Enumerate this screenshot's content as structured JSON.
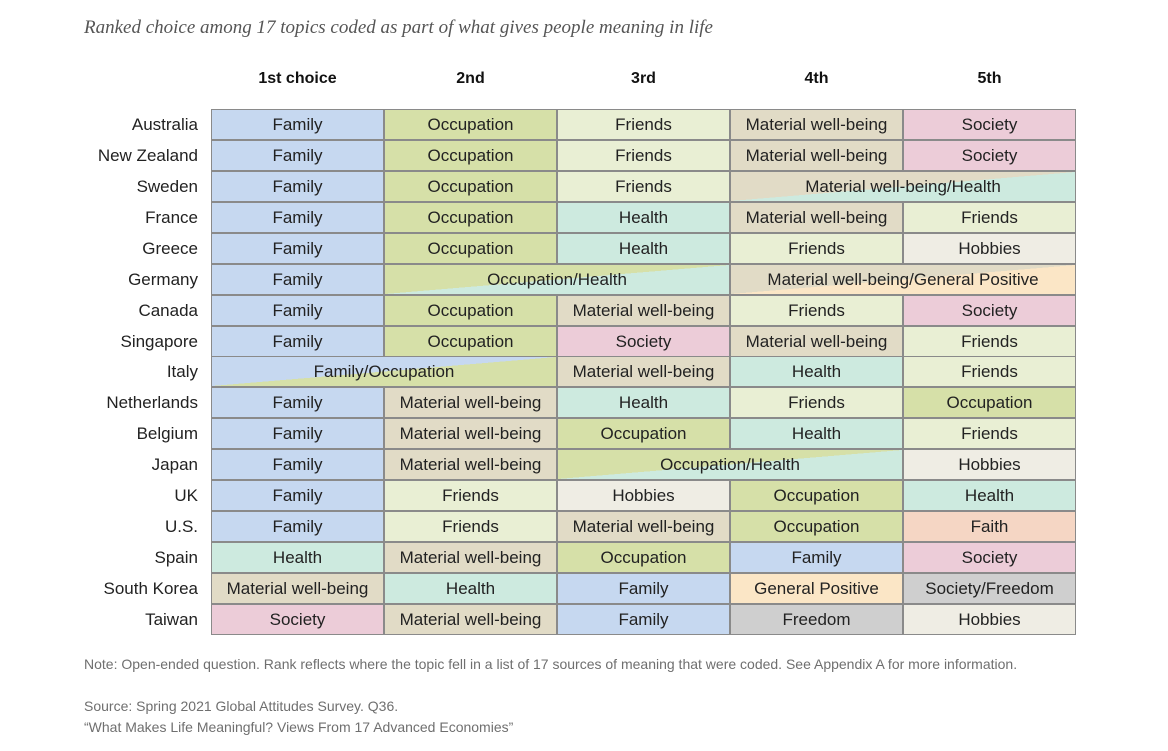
{
  "subtitle": "Ranked choice among 17 topics coded as part of what gives people meaning in life",
  "colors": {
    "Family": "#c6d8f0",
    "Occupation": "#d6e0a8",
    "Friends": "#e9efd4",
    "Material well-being": "#e1dbc6",
    "Society": "#ecccd8",
    "Health": "#cdeadf",
    "Hobbies": "#efede4",
    "Faith": "#f5d6c4",
    "General Positive": "#fbe6c6",
    "Freedom": "#cfcfcf",
    "Society/Freedom": "#cfcfcf"
  },
  "chart_data": {
    "type": "table",
    "columns": [
      "1st choice",
      "2nd",
      "3rd",
      "4th",
      "5th"
    ],
    "rows": [
      {
        "country": "Australia",
        "cells": [
          {
            "text": "Family",
            "span": 1
          },
          {
            "text": "Occupation",
            "span": 1
          },
          {
            "text": "Friends",
            "span": 1
          },
          {
            "text": "Material well-being",
            "span": 1
          },
          {
            "text": "Society",
            "span": 1
          }
        ]
      },
      {
        "country": "New Zealand",
        "cells": [
          {
            "text": "Family",
            "span": 1
          },
          {
            "text": "Occupation",
            "span": 1
          },
          {
            "text": "Friends",
            "span": 1
          },
          {
            "text": "Material well-being",
            "span": 1
          },
          {
            "text": "Society",
            "span": 1
          }
        ]
      },
      {
        "country": "Sweden",
        "cells": [
          {
            "text": "Family",
            "span": 1
          },
          {
            "text": "Occupation",
            "span": 1
          },
          {
            "text": "Friends",
            "span": 1
          },
          {
            "text": "Material well-being/Health",
            "span": 2,
            "tie": [
              "Material well-being",
              "Health"
            ]
          }
        ]
      },
      {
        "country": "France",
        "cells": [
          {
            "text": "Family",
            "span": 1
          },
          {
            "text": "Occupation",
            "span": 1
          },
          {
            "text": "Health",
            "span": 1
          },
          {
            "text": "Material well-being",
            "span": 1
          },
          {
            "text": "Friends",
            "span": 1
          }
        ]
      },
      {
        "country": "Greece",
        "cells": [
          {
            "text": "Family",
            "span": 1
          },
          {
            "text": "Occupation",
            "span": 1
          },
          {
            "text": "Health",
            "span": 1
          },
          {
            "text": "Friends",
            "span": 1
          },
          {
            "text": "Hobbies",
            "span": 1
          }
        ]
      },
      {
        "country": "Germany",
        "cells": [
          {
            "text": "Family",
            "span": 1
          },
          {
            "text": "Occupation/Health",
            "span": 2,
            "tie": [
              "Occupation",
              "Health"
            ]
          },
          {
            "text": "Material well-being/General Positive",
            "span": 2,
            "tie": [
              "Material well-being",
              "General Positive"
            ]
          }
        ]
      },
      {
        "country": "Canada",
        "cells": [
          {
            "text": "Family",
            "span": 1
          },
          {
            "text": "Occupation",
            "span": 1
          },
          {
            "text": "Material well-being",
            "span": 1
          },
          {
            "text": "Friends",
            "span": 1
          },
          {
            "text": "Society",
            "span": 1
          }
        ]
      },
      {
        "country": "Singapore",
        "cells": [
          {
            "text": "Family",
            "span": 1
          },
          {
            "text": "Occupation",
            "span": 1
          },
          {
            "text": "Society",
            "span": 1
          },
          {
            "text": "Material well-being",
            "span": 1
          },
          {
            "text": "Friends",
            "span": 1
          }
        ]
      },
      {
        "country": "Italy",
        "cells": [
          {
            "text": "Family/Occupation",
            "span": 2,
            "tie": [
              "Family",
              "Occupation"
            ]
          },
          {
            "text": "Material well-being",
            "span": 1
          },
          {
            "text": "Health",
            "span": 1
          },
          {
            "text": "Friends",
            "span": 1
          }
        ]
      },
      {
        "country": "Netherlands",
        "cells": [
          {
            "text": "Family",
            "span": 1
          },
          {
            "text": "Material well-being",
            "span": 1
          },
          {
            "text": "Health",
            "span": 1
          },
          {
            "text": "Friends",
            "span": 1
          },
          {
            "text": "Occupation",
            "span": 1
          }
        ]
      },
      {
        "country": "Belgium",
        "cells": [
          {
            "text": "Family",
            "span": 1
          },
          {
            "text": "Material well-being",
            "span": 1
          },
          {
            "text": "Occupation",
            "span": 1
          },
          {
            "text": "Health",
            "span": 1
          },
          {
            "text": "Friends",
            "span": 1
          }
        ]
      },
      {
        "country": "Japan",
        "cells": [
          {
            "text": "Family",
            "span": 1
          },
          {
            "text": "Material well-being",
            "span": 1
          },
          {
            "text": "Occupation/Health",
            "span": 2,
            "tie": [
              "Occupation",
              "Health"
            ]
          },
          {
            "text": "Hobbies",
            "span": 1
          }
        ]
      },
      {
        "country": "UK",
        "cells": [
          {
            "text": "Family",
            "span": 1
          },
          {
            "text": "Friends",
            "span": 1
          },
          {
            "text": "Hobbies",
            "span": 1
          },
          {
            "text": "Occupation",
            "span": 1
          },
          {
            "text": "Health",
            "span": 1
          }
        ]
      },
      {
        "country": "U.S.",
        "cells": [
          {
            "text": "Family",
            "span": 1
          },
          {
            "text": "Friends",
            "span": 1
          },
          {
            "text": "Material well-being",
            "span": 1
          },
          {
            "text": "Occupation",
            "span": 1
          },
          {
            "text": "Faith",
            "span": 1
          }
        ]
      },
      {
        "country": "Spain",
        "cells": [
          {
            "text": "Health",
            "span": 1
          },
          {
            "text": "Material well-being",
            "span": 1
          },
          {
            "text": "Occupation",
            "span": 1
          },
          {
            "text": "Family",
            "span": 1
          },
          {
            "text": "Society",
            "span": 1
          }
        ]
      },
      {
        "country": "South Korea",
        "cells": [
          {
            "text": "Material well-being",
            "span": 1
          },
          {
            "text": "Health",
            "span": 1
          },
          {
            "text": "Family",
            "span": 1
          },
          {
            "text": "General Positive",
            "span": 1
          },
          {
            "text": "Society/Freedom",
            "span": 1
          }
        ]
      },
      {
        "country": "Taiwan",
        "cells": [
          {
            "text": "Society",
            "span": 1
          },
          {
            "text": "Material well-being",
            "span": 1
          },
          {
            "text": "Family",
            "span": 1
          },
          {
            "text": "Freedom",
            "span": 1
          },
          {
            "text": "Hobbies",
            "span": 1
          }
        ]
      }
    ]
  },
  "notes": {
    "note": "Note: Open-ended question. Rank reflects where the topic fell in a list of 17 sources of meaning that were coded. See Appendix A for more information.",
    "source": "Source: Spring 2021 Global Attitudes Survey. Q36.",
    "report": "“What Makes Life Meaningful? Views From 17 Advanced Economies”"
  }
}
